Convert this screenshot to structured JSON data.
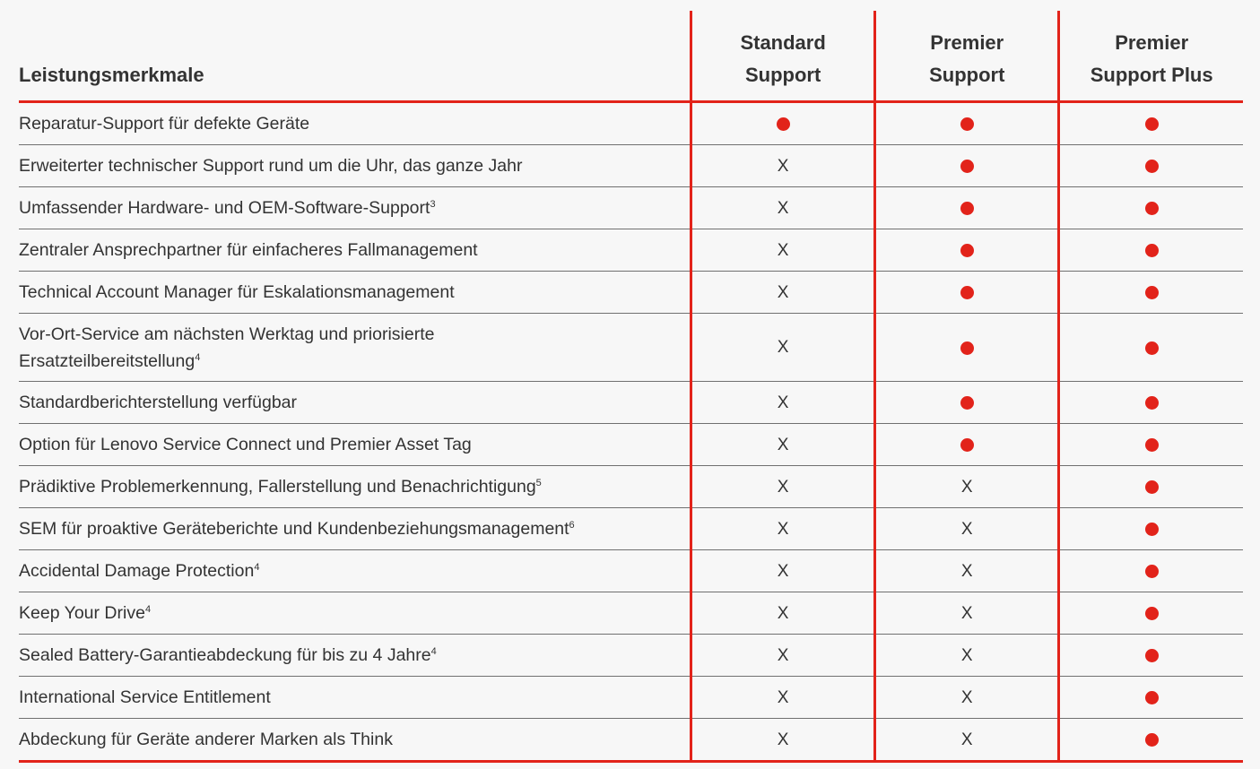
{
  "header": {
    "feature_label": "Leistungsmerkmale",
    "plans": [
      {
        "line1": "Standard",
        "line2": "Support"
      },
      {
        "line1": "Premier",
        "line2": "Support"
      },
      {
        "line1": "Premier",
        "line2": "Support Plus"
      }
    ]
  },
  "symbols": {
    "no": "X",
    "yes_icon": "red-dot",
    "accent_color": "#e2231a"
  },
  "rows": [
    {
      "feature": "Reparatur-Support für defekte Geräte",
      "note": "",
      "values": [
        "yes",
        "yes",
        "yes"
      ]
    },
    {
      "feature": "Erweiterter technischer Support rund um die Uhr, das ganze Jahr",
      "note": "",
      "values": [
        "no",
        "yes",
        "yes"
      ]
    },
    {
      "feature": "Umfassender Hardware- und OEM-Software-Support",
      "note": "3",
      "values": [
        "no",
        "yes",
        "yes"
      ]
    },
    {
      "feature": "Zentraler Ansprechpartner für einfacheres Fallmanagement",
      "note": "",
      "values": [
        "no",
        "yes",
        "yes"
      ]
    },
    {
      "feature": "Technical Account Manager für Eskalationsmanagement",
      "note": "",
      "values": [
        "no",
        "yes",
        "yes"
      ]
    },
    {
      "feature": "Vor-Ort-Service am nächsten Werktag und priorisierte Ersatzteilbereitstellung",
      "note": "4",
      "values": [
        "no",
        "yes",
        "yes"
      ]
    },
    {
      "feature": "Standardberichterstellung verfügbar",
      "note": "",
      "values": [
        "no",
        "yes",
        "yes"
      ]
    },
    {
      "feature": "Option für Lenovo Service Connect und Premier Asset Tag",
      "note": "",
      "values": [
        "no",
        "yes",
        "yes"
      ]
    },
    {
      "feature": "Prädiktive Problemerkennung, Fallerstellung und Benachrichtigung",
      "note": "5",
      "values": [
        "no",
        "no",
        "yes"
      ]
    },
    {
      "feature": "SEM für proaktive Geräteberichte und Kundenbeziehungsmanagement",
      "note": "6",
      "values": [
        "no",
        "no",
        "yes"
      ]
    },
    {
      "feature": "Accidental Damage Protection",
      "note": "4",
      "values": [
        "no",
        "no",
        "yes"
      ]
    },
    {
      "feature": "Keep Your Drive",
      "note": "4",
      "values": [
        "no",
        "no",
        "yes"
      ]
    },
    {
      "feature": "Sealed Battery-Garantieabdeckung für bis zu 4 Jahre",
      "note": "4",
      "values": [
        "no",
        "no",
        "yes"
      ]
    },
    {
      "feature": "International Service Entitlement",
      "note": "",
      "values": [
        "no",
        "no",
        "yes"
      ]
    },
    {
      "feature": "Abdeckung für Geräte anderer Marken als Think",
      "note": "",
      "values": [
        "no",
        "no",
        "yes"
      ]
    }
  ]
}
